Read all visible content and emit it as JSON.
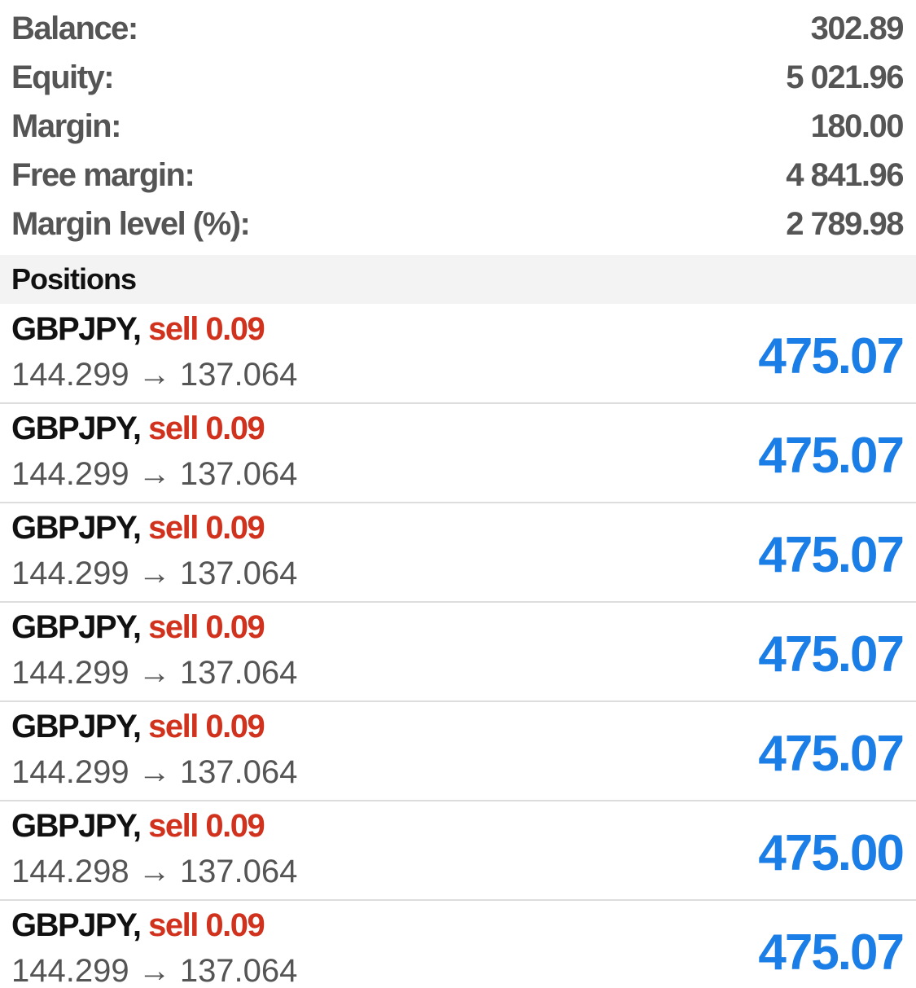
{
  "summary": [
    {
      "label": "Balance:",
      "value": "302.89"
    },
    {
      "label": "Equity:",
      "value": "5 021.96"
    },
    {
      "label": "Margin:",
      "value": "180.00"
    },
    {
      "label": "Free margin:",
      "value": "4 841.96"
    },
    {
      "label": "Margin level (%):",
      "value": "2 789.98"
    }
  ],
  "positions_header": "Positions",
  "positions": [
    {
      "symbol": "GBPJPY,",
      "trade": "sell 0.09",
      "prices": "144.299 → 137.064",
      "profit": "475.07"
    },
    {
      "symbol": "GBPJPY,",
      "trade": "sell 0.09",
      "prices": "144.299 → 137.064",
      "profit": "475.07"
    },
    {
      "symbol": "GBPJPY,",
      "trade": "sell 0.09",
      "prices": "144.299 → 137.064",
      "profit": "475.07"
    },
    {
      "symbol": "GBPJPY,",
      "trade": "sell 0.09",
      "prices": "144.299 → 137.064",
      "profit": "475.07"
    },
    {
      "symbol": "GBPJPY,",
      "trade": "sell 0.09",
      "prices": "144.299 → 137.064",
      "profit": "475.07"
    },
    {
      "symbol": "GBPJPY,",
      "trade": "sell 0.09",
      "prices": "144.298 → 137.064",
      "profit": "475.00"
    },
    {
      "symbol": "GBPJPY,",
      "trade": "sell 0.09",
      "prices": "144.299 → 137.064",
      "profit": "475.07"
    }
  ]
}
